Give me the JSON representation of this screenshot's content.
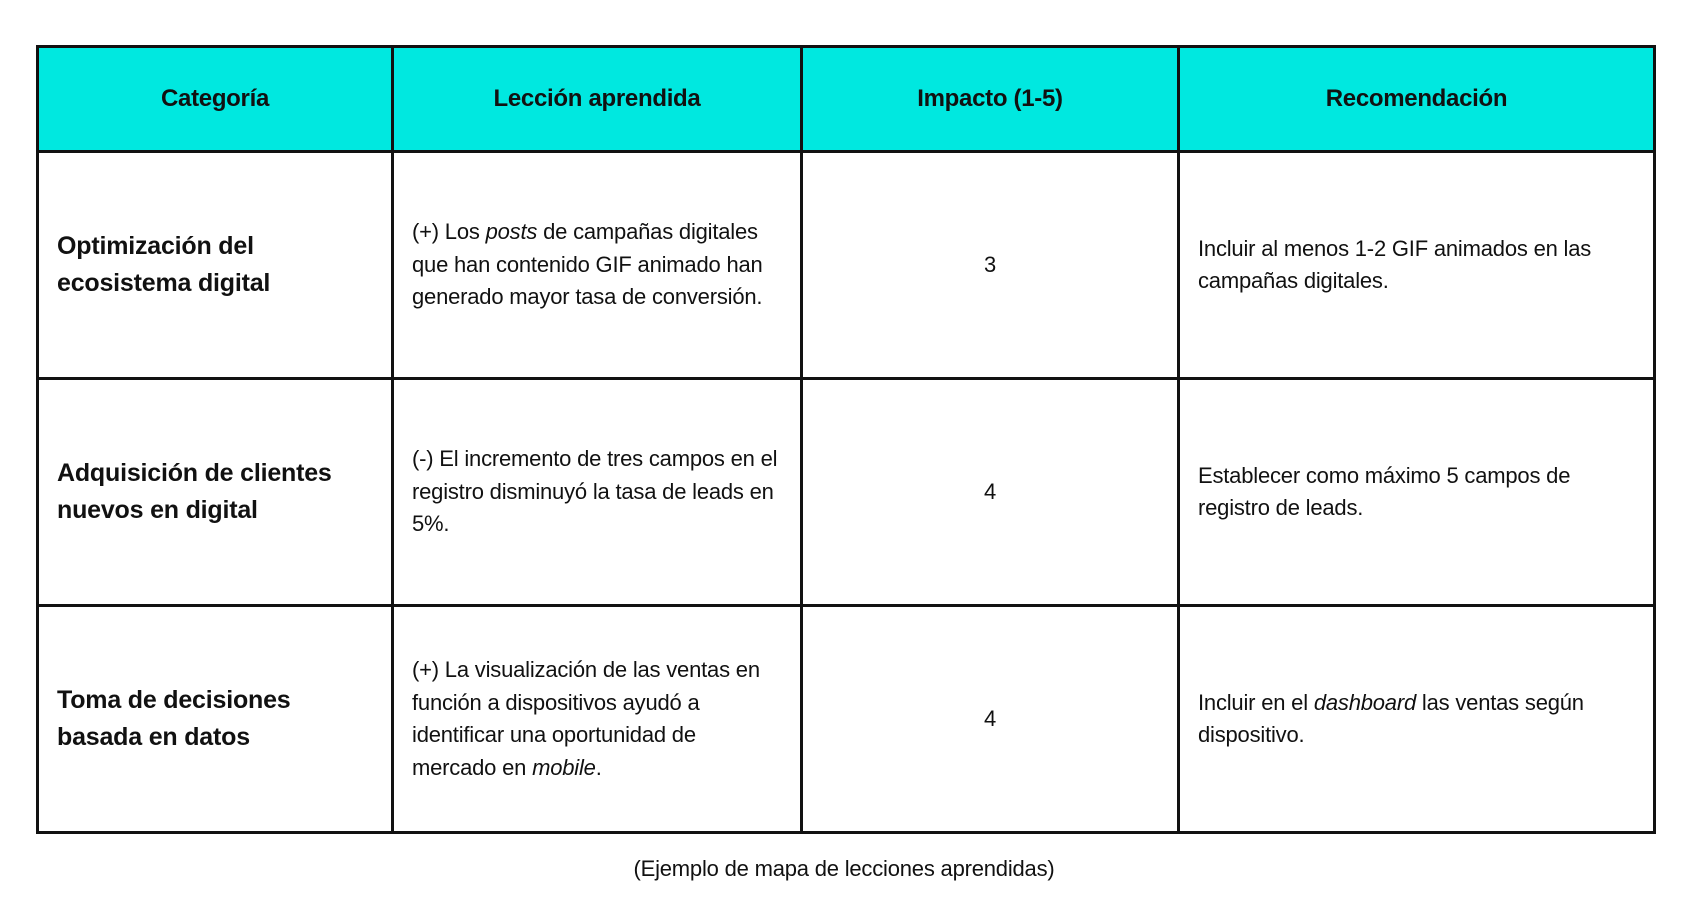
{
  "table": {
    "headers": [
      "Categoría",
      "Lección aprendida",
      "Impacto (1-5)",
      "Recomendación"
    ],
    "header_color": "#00e8e0",
    "rows": [
      {
        "category": "Optimización del ecosistema digital",
        "lesson_pre": "(+) Los ",
        "lesson_em": "posts",
        "lesson_post": " de campañas digitales que han contenido GIF animado han generado mayor tasa de conversión.",
        "impact": "3",
        "rec_pre": "Incluir al menos 1-2 GIF animados en las campañas digitales.",
        "rec_em": "",
        "rec_post": ""
      },
      {
        "category": "Adquisición de clientes nuevos en digital",
        "lesson_pre": "(-) El incremento de tres campos en el registro disminuyó la tasa de leads en 5%.",
        "lesson_em": "",
        "lesson_post": "",
        "impact": "4",
        "rec_pre": "Establecer como máximo 5 campos de registro de leads.",
        "rec_em": "",
        "rec_post": ""
      },
      {
        "category": "Toma de decisiones basada en datos",
        "lesson_pre": "(+) La visualización de las ventas en función a dispositivos ayudó a identificar una oportunidad de mercado en ",
        "lesson_em": "mobile",
        "lesson_post": ".",
        "impact": "4",
        "rec_pre": "Incluir en el ",
        "rec_em": "dashboard",
        "rec_post": " las ventas según dispositivo."
      }
    ]
  },
  "caption": "(Ejemplo de mapa de lecciones aprendidas)"
}
